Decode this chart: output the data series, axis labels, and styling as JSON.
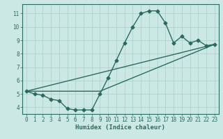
{
  "xlabel": "Humidex (Indice chaleur)",
  "bg_color": "#cce8e4",
  "grid_color": "#aed4ce",
  "line_color": "#2a6b5e",
  "xlim": [
    -0.5,
    23.5
  ],
  "ylim": [
    3.5,
    11.7
  ],
  "xticks": [
    0,
    1,
    2,
    3,
    4,
    5,
    6,
    7,
    8,
    9,
    10,
    11,
    12,
    13,
    14,
    15,
    16,
    17,
    18,
    19,
    20,
    21,
    22,
    23
  ],
  "yticks": [
    4,
    5,
    6,
    7,
    8,
    9,
    10,
    11
  ],
  "curve1_x": [
    0,
    1,
    2,
    3,
    4,
    5,
    6,
    7,
    8,
    9,
    10,
    11,
    12,
    13,
    14,
    15,
    16,
    17,
    18,
    19,
    20,
    21,
    22,
    23
  ],
  "curve1_y": [
    5.2,
    5.0,
    4.9,
    4.6,
    4.5,
    3.9,
    3.8,
    3.8,
    3.8,
    5.0,
    6.2,
    7.5,
    8.8,
    10.0,
    11.0,
    11.2,
    11.2,
    10.3,
    8.8,
    9.3,
    8.8,
    9.0,
    8.6,
    8.7
  ],
  "curve2_x": [
    0,
    23
  ],
  "curve2_y": [
    5.2,
    8.7
  ],
  "curve3_x": [
    0,
    9,
    23
  ],
  "curve3_y": [
    5.2,
    5.2,
    8.7
  ],
  "marker_size": 2.5,
  "linewidth": 1.0,
  "tick_fontsize": 5.5,
  "xlabel_fontsize": 6.5
}
